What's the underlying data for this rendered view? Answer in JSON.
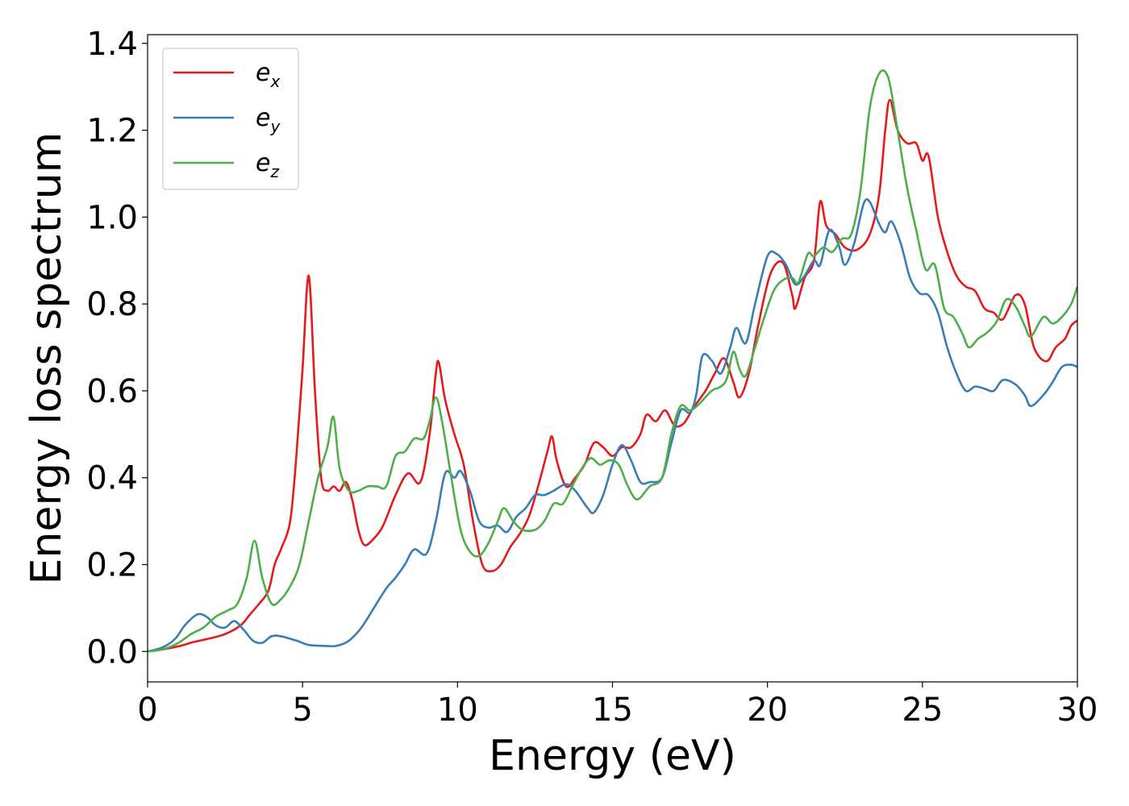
{
  "chart_data": {
    "type": "line",
    "title": "",
    "xlabel": "Energy (eV)",
    "ylabel": "Energy loss spectrum",
    "xlim": [
      0,
      30
    ],
    "ylim": [
      -0.07,
      1.42
    ],
    "xticks": [
      0,
      5,
      10,
      15,
      20,
      25,
      30
    ],
    "xtick_labels": [
      "0",
      "5",
      "10",
      "15",
      "20",
      "25",
      "30"
    ],
    "yticks": [
      0.0,
      0.2,
      0.4,
      0.6,
      0.8,
      1.0,
      1.2,
      1.4
    ],
    "ytick_labels": [
      "0.0",
      "0.2",
      "0.4",
      "0.6",
      "0.8",
      "1.0",
      "1.2",
      "1.4"
    ],
    "grid": false,
    "legend_position": "top-left",
    "series": [
      {
        "name": "e",
        "subscript": "x",
        "color": "#e41a1c",
        "points": [
          [
            0,
            0
          ],
          [
            0.5,
            0.005
          ],
          [
            1,
            0.012
          ],
          [
            1.5,
            0.022
          ],
          [
            2,
            0.03
          ],
          [
            2.5,
            0.04
          ],
          [
            3,
            0.06
          ],
          [
            3.3,
            0.085
          ],
          [
            3.6,
            0.11
          ],
          [
            3.9,
            0.14
          ],
          [
            4.1,
            0.2
          ],
          [
            4.3,
            0.235
          ],
          [
            4.6,
            0.3
          ],
          [
            4.8,
            0.45
          ],
          [
            5.0,
            0.65
          ],
          [
            5.2,
            0.865
          ],
          [
            5.4,
            0.6
          ],
          [
            5.6,
            0.4
          ],
          [
            5.8,
            0.37
          ],
          [
            6.0,
            0.38
          ],
          [
            6.2,
            0.37
          ],
          [
            6.4,
            0.39
          ],
          [
            6.6,
            0.35
          ],
          [
            6.8,
            0.28
          ],
          [
            7.0,
            0.245
          ],
          [
            7.3,
            0.26
          ],
          [
            7.6,
            0.29
          ],
          [
            8.0,
            0.36
          ],
          [
            8.4,
            0.41
          ],
          [
            8.8,
            0.39
          ],
          [
            9.1,
            0.5
          ],
          [
            9.3,
            0.64
          ],
          [
            9.4,
            0.665
          ],
          [
            9.6,
            0.58
          ],
          [
            9.9,
            0.5
          ],
          [
            10.2,
            0.43
          ],
          [
            10.5,
            0.3
          ],
          [
            10.8,
            0.2
          ],
          [
            11.1,
            0.185
          ],
          [
            11.4,
            0.2
          ],
          [
            11.7,
            0.24
          ],
          [
            12.0,
            0.27
          ],
          [
            12.3,
            0.31
          ],
          [
            12.6,
            0.38
          ],
          [
            12.9,
            0.46
          ],
          [
            13.05,
            0.495
          ],
          [
            13.2,
            0.44
          ],
          [
            13.5,
            0.38
          ],
          [
            13.8,
            0.4
          ],
          [
            14.1,
            0.43
          ],
          [
            14.4,
            0.48
          ],
          [
            14.7,
            0.47
          ],
          [
            15.0,
            0.45
          ],
          [
            15.3,
            0.47
          ],
          [
            15.6,
            0.47
          ],
          [
            15.9,
            0.5
          ],
          [
            16.1,
            0.545
          ],
          [
            16.4,
            0.53
          ],
          [
            16.7,
            0.555
          ],
          [
            17.0,
            0.52
          ],
          [
            17.3,
            0.525
          ],
          [
            17.6,
            0.56
          ],
          [
            18.0,
            0.6
          ],
          [
            18.3,
            0.64
          ],
          [
            18.6,
            0.675
          ],
          [
            18.9,
            0.62
          ],
          [
            19.1,
            0.585
          ],
          [
            19.4,
            0.64
          ],
          [
            19.7,
            0.75
          ],
          [
            20.1,
            0.87
          ],
          [
            20.5,
            0.895
          ],
          [
            20.8,
            0.82
          ],
          [
            20.9,
            0.79
          ],
          [
            21.2,
            0.86
          ],
          [
            21.5,
            0.9
          ],
          [
            21.7,
            1.035
          ],
          [
            21.9,
            0.98
          ],
          [
            22.2,
            0.96
          ],
          [
            22.5,
            0.93
          ],
          [
            22.9,
            0.925
          ],
          [
            23.3,
            0.96
          ],
          [
            23.6,
            1.05
          ],
          [
            23.8,
            1.2
          ],
          [
            23.95,
            1.27
          ],
          [
            24.2,
            1.2
          ],
          [
            24.5,
            1.17
          ],
          [
            24.8,
            1.17
          ],
          [
            25.0,
            1.13
          ],
          [
            25.2,
            1.14
          ],
          [
            25.5,
            1.0
          ],
          [
            25.8,
            0.92
          ],
          [
            26.1,
            0.865
          ],
          [
            26.4,
            0.84
          ],
          [
            26.7,
            0.83
          ],
          [
            27.0,
            0.79
          ],
          [
            27.3,
            0.78
          ],
          [
            27.6,
            0.765
          ],
          [
            28.0,
            0.82
          ],
          [
            28.3,
            0.8
          ],
          [
            28.6,
            0.7
          ],
          [
            29.0,
            0.668
          ],
          [
            29.3,
            0.7
          ],
          [
            29.6,
            0.72
          ],
          [
            29.8,
            0.75
          ],
          [
            30.0,
            0.762
          ]
        ]
      },
      {
        "name": "e",
        "subscript": "y",
        "color": "#377eb8",
        "points": [
          [
            0,
            0
          ],
          [
            0.5,
            0.01
          ],
          [
            0.9,
            0.03
          ],
          [
            1.2,
            0.06
          ],
          [
            1.6,
            0.085
          ],
          [
            1.9,
            0.08
          ],
          [
            2.2,
            0.06
          ],
          [
            2.5,
            0.055
          ],
          [
            2.8,
            0.07
          ],
          [
            3.1,
            0.05
          ],
          [
            3.4,
            0.025
          ],
          [
            3.7,
            0.02
          ],
          [
            4.0,
            0.035
          ],
          [
            4.3,
            0.035
          ],
          [
            4.8,
            0.025
          ],
          [
            5.2,
            0.015
          ],
          [
            5.7,
            0.013
          ],
          [
            6.1,
            0.013
          ],
          [
            6.5,
            0.025
          ],
          [
            6.9,
            0.055
          ],
          [
            7.3,
            0.1
          ],
          [
            7.7,
            0.145
          ],
          [
            8.0,
            0.17
          ],
          [
            8.3,
            0.2
          ],
          [
            8.6,
            0.235
          ],
          [
            9.0,
            0.225
          ],
          [
            9.3,
            0.3
          ],
          [
            9.6,
            0.41
          ],
          [
            9.9,
            0.4
          ],
          [
            10.1,
            0.415
          ],
          [
            10.4,
            0.37
          ],
          [
            10.7,
            0.3
          ],
          [
            11.0,
            0.285
          ],
          [
            11.3,
            0.29
          ],
          [
            11.6,
            0.275
          ],
          [
            11.9,
            0.31
          ],
          [
            12.2,
            0.33
          ],
          [
            12.5,
            0.36
          ],
          [
            12.8,
            0.36
          ],
          [
            13.1,
            0.37
          ],
          [
            13.5,
            0.385
          ],
          [
            13.8,
            0.37
          ],
          [
            14.2,
            0.33
          ],
          [
            14.4,
            0.32
          ],
          [
            14.7,
            0.36
          ],
          [
            15.0,
            0.43
          ],
          [
            15.3,
            0.475
          ],
          [
            15.6,
            0.44
          ],
          [
            15.9,
            0.39
          ],
          [
            16.2,
            0.39
          ],
          [
            16.6,
            0.4
          ],
          [
            16.9,
            0.48
          ],
          [
            17.2,
            0.555
          ],
          [
            17.5,
            0.55
          ],
          [
            17.7,
            0.59
          ],
          [
            17.9,
            0.68
          ],
          [
            18.2,
            0.67
          ],
          [
            18.5,
            0.64
          ],
          [
            18.8,
            0.7
          ],
          [
            19.0,
            0.745
          ],
          [
            19.3,
            0.71
          ],
          [
            19.6,
            0.8
          ],
          [
            20.0,
            0.91
          ],
          [
            20.3,
            0.915
          ],
          [
            20.6,
            0.89
          ],
          [
            20.9,
            0.845
          ],
          [
            21.2,
            0.865
          ],
          [
            21.5,
            0.9
          ],
          [
            21.7,
            0.89
          ],
          [
            22.0,
            0.97
          ],
          [
            22.3,
            0.935
          ],
          [
            22.5,
            0.89
          ],
          [
            22.8,
            0.94
          ],
          [
            23.1,
            1.03
          ],
          [
            23.3,
            1.035
          ],
          [
            23.6,
            0.985
          ],
          [
            23.8,
            0.965
          ],
          [
            24.0,
            0.99
          ],
          [
            24.3,
            0.94
          ],
          [
            24.6,
            0.86
          ],
          [
            24.9,
            0.825
          ],
          [
            25.2,
            0.82
          ],
          [
            25.5,
            0.78
          ],
          [
            25.8,
            0.7
          ],
          [
            26.1,
            0.64
          ],
          [
            26.4,
            0.6
          ],
          [
            26.7,
            0.61
          ],
          [
            27.0,
            0.605
          ],
          [
            27.3,
            0.6
          ],
          [
            27.6,
            0.625
          ],
          [
            28.0,
            0.615
          ],
          [
            28.3,
            0.59
          ],
          [
            28.5,
            0.565
          ],
          [
            28.9,
            0.59
          ],
          [
            29.2,
            0.62
          ],
          [
            29.5,
            0.655
          ],
          [
            29.8,
            0.66
          ],
          [
            30.0,
            0.655
          ]
        ]
      },
      {
        "name": "e",
        "subscript": "z",
        "color": "#4daf4a",
        "points": [
          [
            0,
            0
          ],
          [
            0.5,
            0.005
          ],
          [
            1.0,
            0.02
          ],
          [
            1.4,
            0.04
          ],
          [
            1.8,
            0.055
          ],
          [
            2.2,
            0.08
          ],
          [
            2.6,
            0.095
          ],
          [
            2.9,
            0.11
          ],
          [
            3.2,
            0.17
          ],
          [
            3.45,
            0.255
          ],
          [
            3.7,
            0.17
          ],
          [
            4.0,
            0.11
          ],
          [
            4.3,
            0.12
          ],
          [
            4.6,
            0.15
          ],
          [
            4.9,
            0.2
          ],
          [
            5.2,
            0.3
          ],
          [
            5.5,
            0.4
          ],
          [
            5.8,
            0.47
          ],
          [
            6.0,
            0.54
          ],
          [
            6.2,
            0.42
          ],
          [
            6.5,
            0.37
          ],
          [
            6.8,
            0.37
          ],
          [
            7.1,
            0.38
          ],
          [
            7.4,
            0.38
          ],
          [
            7.7,
            0.38
          ],
          [
            8.0,
            0.45
          ],
          [
            8.3,
            0.46
          ],
          [
            8.6,
            0.49
          ],
          [
            8.9,
            0.49
          ],
          [
            9.1,
            0.53
          ],
          [
            9.3,
            0.585
          ],
          [
            9.5,
            0.53
          ],
          [
            9.8,
            0.4
          ],
          [
            10.1,
            0.28
          ],
          [
            10.4,
            0.23
          ],
          [
            10.7,
            0.22
          ],
          [
            11.0,
            0.25
          ],
          [
            11.3,
            0.3
          ],
          [
            11.5,
            0.33
          ],
          [
            11.8,
            0.3
          ],
          [
            12.1,
            0.28
          ],
          [
            12.5,
            0.28
          ],
          [
            12.8,
            0.3
          ],
          [
            13.1,
            0.34
          ],
          [
            13.4,
            0.34
          ],
          [
            13.7,
            0.38
          ],
          [
            14.0,
            0.42
          ],
          [
            14.3,
            0.445
          ],
          [
            14.6,
            0.43
          ],
          [
            14.9,
            0.44
          ],
          [
            15.2,
            0.43
          ],
          [
            15.5,
            0.38
          ],
          [
            15.8,
            0.35
          ],
          [
            16.2,
            0.38
          ],
          [
            16.6,
            0.4
          ],
          [
            16.9,
            0.5
          ],
          [
            17.2,
            0.565
          ],
          [
            17.5,
            0.555
          ],
          [
            17.8,
            0.57
          ],
          [
            18.2,
            0.6
          ],
          [
            18.5,
            0.61
          ],
          [
            18.7,
            0.63
          ],
          [
            18.9,
            0.69
          ],
          [
            19.1,
            0.65
          ],
          [
            19.3,
            0.635
          ],
          [
            19.6,
            0.7
          ],
          [
            19.9,
            0.77
          ],
          [
            20.2,
            0.83
          ],
          [
            20.5,
            0.855
          ],
          [
            20.8,
            0.86
          ],
          [
            21.0,
            0.85
          ],
          [
            21.3,
            0.915
          ],
          [
            21.5,
            0.91
          ],
          [
            21.8,
            0.93
          ],
          [
            22.1,
            0.92
          ],
          [
            22.4,
            0.95
          ],
          [
            22.7,
            0.96
          ],
          [
            23.0,
            1.06
          ],
          [
            23.3,
            1.25
          ],
          [
            23.6,
            1.33
          ],
          [
            23.9,
            1.32
          ],
          [
            24.2,
            1.2
          ],
          [
            24.5,
            1.07
          ],
          [
            24.8,
            0.97
          ],
          [
            25.1,
            0.88
          ],
          [
            25.4,
            0.89
          ],
          [
            25.7,
            0.79
          ],
          [
            26.0,
            0.77
          ],
          [
            26.3,
            0.73
          ],
          [
            26.5,
            0.7
          ],
          [
            26.8,
            0.72
          ],
          [
            27.1,
            0.735
          ],
          [
            27.4,
            0.76
          ],
          [
            27.7,
            0.81
          ],
          [
            28.0,
            0.795
          ],
          [
            28.3,
            0.75
          ],
          [
            28.5,
            0.725
          ],
          [
            28.9,
            0.77
          ],
          [
            29.2,
            0.755
          ],
          [
            29.5,
            0.77
          ],
          [
            29.8,
            0.8
          ],
          [
            30.0,
            0.84
          ]
        ]
      }
    ]
  }
}
